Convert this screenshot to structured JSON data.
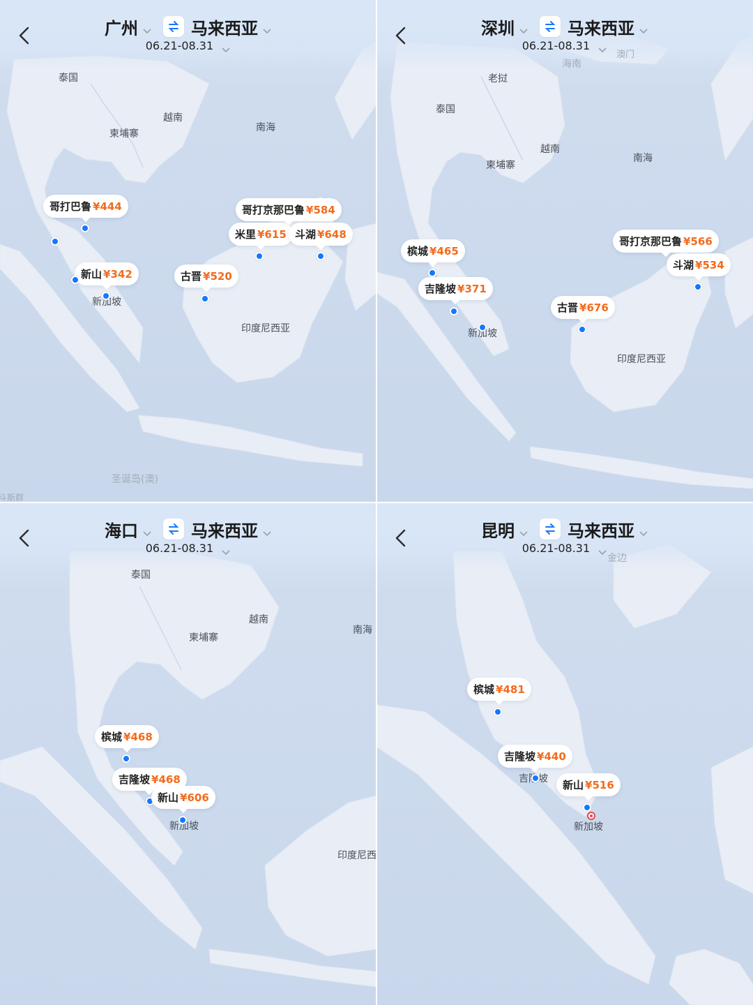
{
  "panels": [
    {
      "origin": "广州",
      "destination": "马来西亚",
      "dates": "06.21-08.31",
      "places": [
        "泰国",
        "越南",
        "柬埔寨",
        "南海",
        "新加坡",
        "印度尼西亚",
        "圣诞岛(澳)",
        "斗斯群"
      ],
      "pins": [
        {
          "name": "哥打巴鲁",
          "price": "¥444"
        },
        {
          "name": "新山",
          "price": "¥342"
        },
        {
          "name": "古晋",
          "price": "¥520"
        },
        {
          "name": "哥打京那巴鲁",
          "price": "¥584"
        },
        {
          "name": "米里",
          "price": "¥615"
        },
        {
          "name": "斗湖",
          "price": "¥648"
        }
      ]
    },
    {
      "origin": "深圳",
      "destination": "马来西亚",
      "dates": "06.21-08.31",
      "places": [
        "海南",
        "澳门",
        "老挝",
        "泰国",
        "越南",
        "柬埔寨",
        "南海",
        "新加坡",
        "印度尼西亚"
      ],
      "pins": [
        {
          "name": "槟城",
          "price": "¥465"
        },
        {
          "name": "吉隆坡",
          "price": "¥371"
        },
        {
          "name": "古晋",
          "price": "¥676"
        },
        {
          "name": "哥打京那巴鲁",
          "price": "¥566"
        },
        {
          "name": "斗湖",
          "price": "¥534"
        }
      ]
    },
    {
      "origin": "海口",
      "destination": "马来西亚",
      "dates": "06.21-08.31",
      "places": [
        "泰国",
        "越南",
        "柬埔寨",
        "南海",
        "新加坡",
        "印度尼西"
      ],
      "pins": [
        {
          "name": "槟城",
          "price": "¥468"
        },
        {
          "name": "吉隆坡",
          "price": "¥468"
        },
        {
          "name": "新山",
          "price": "¥606"
        }
      ]
    },
    {
      "origin": "昆明",
      "destination": "马来西亚",
      "dates": "06.21-08.31",
      "places": [
        "金边",
        "吉隆坡",
        "新加坡"
      ],
      "pins": [
        {
          "name": "槟城",
          "price": "¥481"
        },
        {
          "name": "吉隆坡",
          "price": "¥440"
        },
        {
          "name": "新山",
          "price": "¥516"
        }
      ]
    }
  ],
  "colors": {
    "sea": "#c9d7ec",
    "land": "#e9eef6",
    "price": "#f26b1d",
    "marker": "#1677ff",
    "swap_icon": "#1677ff"
  },
  "icons": [
    "back-chevron-icon",
    "dropdown-caret-icon",
    "swap-arrows-icon",
    "location-dot-icon",
    "target-marker-icon"
  ]
}
